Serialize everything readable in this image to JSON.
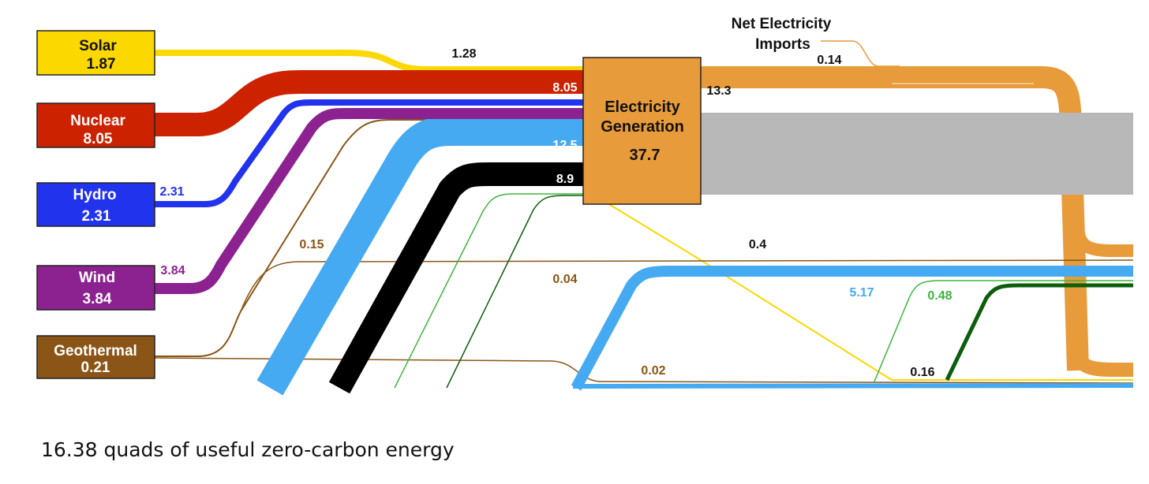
{
  "colors": {
    "solar": "#FBD800",
    "nuclear": "#CC2200",
    "hydro": "#2233EE",
    "wind": "#8B2290",
    "geothermal": "#8B5517",
    "electricity": "#E89B3A",
    "light_blue": "#45AAF2",
    "black": "#000000",
    "gray": "#B8B8B8",
    "green": "#3DB53D",
    "dark_green": "#0B5E0B"
  },
  "sources": {
    "solar": {
      "name": "Solar",
      "value": "1.87"
    },
    "nuclear": {
      "name": "Nuclear",
      "value": "8.05"
    },
    "hydro": {
      "name": "Hydro",
      "value": "2.31"
    },
    "wind": {
      "name": "Wind",
      "value": "3.84"
    },
    "geothermal": {
      "name": "Geothermal",
      "value": "0.21"
    }
  },
  "generation": {
    "line1": "Electricity",
    "line2": "Generation",
    "value": "37.7"
  },
  "imports": {
    "line1": "Net Electricity",
    "line2": "Imports",
    "value": "0.14"
  },
  "flow_labels": {
    "solar_to_gen": "1.28",
    "nuclear_to_gen": "8.05",
    "gas_to_gen": "12.5",
    "coal_to_gen": "8.9",
    "gen_output": "13.3",
    "hydro_out": "2.31",
    "wind_out": "3.84",
    "geo_to_gen": "0.15",
    "solar_lower": "0.4",
    "geo_mid": "0.04",
    "gas_lower": "5.17",
    "green_lower": "0.48",
    "geo_low": "0.02",
    "black_lower": "0.16"
  },
  "caption": "16.38 quads of useful zero-carbon energy"
}
